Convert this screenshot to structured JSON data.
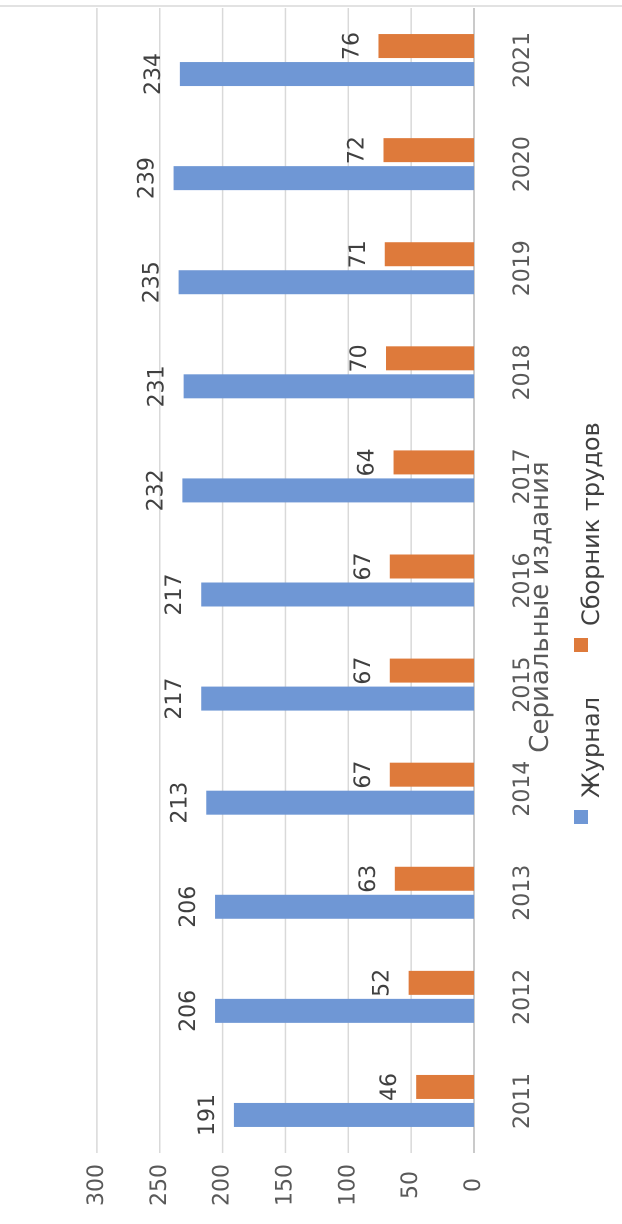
{
  "chart_data": {
    "type": "bar",
    "title": "Сериальные издания",
    "categories": [
      "2011",
      "2012",
      "2013",
      "2014",
      "2015",
      "2016",
      "2017",
      "2018",
      "2019",
      "2020",
      "2021"
    ],
    "series": [
      {
        "name": "Журнал",
        "color": "#6f97d5",
        "values": [
          191,
          206,
          206,
          213,
          217,
          217,
          232,
          231,
          235,
          239,
          234
        ]
      },
      {
        "name": "Сборник трудов",
        "color": "#de7a3b",
        "values": [
          46,
          52,
          63,
          67,
          67,
          67,
          64,
          70,
          71,
          72,
          76
        ]
      }
    ],
    "ylim": [
      0,
      300
    ],
    "ticks": [
      0,
      50,
      100,
      150,
      200,
      250,
      300
    ],
    "grid": true,
    "legend_position": "bottom",
    "data_labels": true,
    "orientation": "rotated-90-clockwise"
  }
}
